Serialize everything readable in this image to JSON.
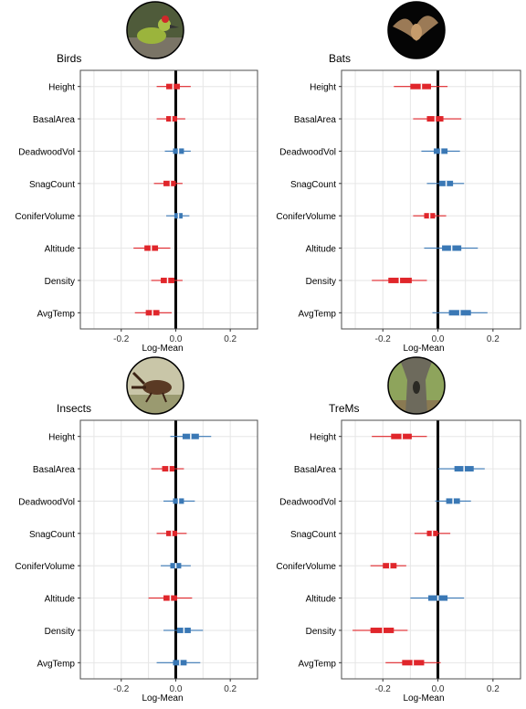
{
  "colors": {
    "negative": "#e0262b",
    "positive": "#3a78b5",
    "zero_line": "#000000",
    "grid": "#e6e6e6",
    "panel_border": "#4d4d4d"
  },
  "chart_data": [
    {
      "type": "forest",
      "title": "Birds",
      "photo_icon": "green-woodpecker-photo",
      "xlabel": "Log-Mean",
      "xlim": [
        -0.35,
        0.3
      ],
      "xticks": [
        -0.2,
        0.0,
        0.2
      ],
      "xtick_labels": [
        "-0.2",
        "0.0",
        "0.2"
      ],
      "grid": true,
      "categories": [
        "Height",
        "BasalArea",
        "DeadwoodVol",
        "SnagCount",
        "ConiferVolume",
        "Altitude",
        "Density",
        "AvgTemp"
      ],
      "mean": [
        -0.01,
        -0.015,
        0.01,
        -0.02,
        0.01,
        -0.09,
        -0.03,
        -0.085
      ],
      "inner_lo": [
        -0.035,
        -0.035,
        -0.01,
        -0.045,
        -0.005,
        -0.115,
        -0.055,
        -0.11
      ],
      "inner_hi": [
        0.015,
        0.005,
        0.03,
        0.0,
        0.025,
        -0.065,
        -0.005,
        -0.06
      ],
      "outer_lo": [
        -0.07,
        -0.07,
        -0.04,
        -0.08,
        -0.035,
        -0.155,
        -0.09,
        -0.15
      ],
      "outer_hi": [
        0.055,
        0.035,
        0.055,
        0.025,
        0.05,
        -0.02,
        0.025,
        -0.015
      ]
    },
    {
      "type": "forest",
      "title": "Bats",
      "photo_icon": "bat-photo",
      "xlabel": "Log-Mean",
      "xlim": [
        -0.35,
        0.3
      ],
      "xticks": [
        -0.2,
        0.0,
        0.2
      ],
      "xtick_labels": [
        "-0.2",
        "0.0",
        "0.2"
      ],
      "grid": true,
      "categories": [
        "Height",
        "BasalArea",
        "DeadwoodVol",
        "SnagCount",
        "ConiferVolume",
        "Altitude",
        "Density",
        "AvgTemp"
      ],
      "mean": [
        -0.06,
        -0.01,
        0.01,
        0.03,
        -0.03,
        0.05,
        -0.14,
        0.08
      ],
      "inner_lo": [
        -0.1,
        -0.04,
        -0.015,
        0.005,
        -0.05,
        0.015,
        -0.18,
        0.04
      ],
      "inner_hi": [
        -0.025,
        0.02,
        0.035,
        0.055,
        -0.01,
        0.085,
        -0.095,
        0.12
      ],
      "outer_lo": [
        -0.16,
        -0.09,
        -0.06,
        -0.04,
        -0.09,
        -0.05,
        -0.24,
        -0.02
      ],
      "outer_hi": [
        0.035,
        0.085,
        0.08,
        0.095,
        0.03,
        0.145,
        -0.04,
        0.18
      ]
    },
    {
      "type": "forest",
      "title": "Insects",
      "photo_icon": "stag-beetle-photo",
      "xlabel": "Log-Mean",
      "xlim": [
        -0.35,
        0.3
      ],
      "xticks": [
        -0.2,
        0.0,
        0.2
      ],
      "xtick_labels": [
        "-0.2",
        "0.0",
        "0.2"
      ],
      "grid": true,
      "categories": [
        "Height",
        "BasalArea",
        "DeadwoodVol",
        "SnagCount",
        "ConiferVolume",
        "Altitude",
        "Density",
        "AvgTemp"
      ],
      "mean": [
        0.055,
        -0.025,
        0.01,
        -0.015,
        0.0,
        -0.02,
        0.03,
        0.015
      ],
      "inner_lo": [
        0.025,
        -0.05,
        -0.01,
        -0.035,
        -0.02,
        -0.045,
        0.005,
        -0.01
      ],
      "inner_hi": [
        0.085,
        -0.005,
        0.03,
        0.005,
        0.02,
        0.005,
        0.055,
        0.04
      ],
      "outer_lo": [
        -0.02,
        -0.09,
        -0.045,
        -0.07,
        -0.055,
        -0.1,
        -0.045,
        -0.07
      ],
      "outer_hi": [
        0.13,
        0.03,
        0.07,
        0.04,
        0.055,
        0.06,
        0.1,
        0.09
      ]
    },
    {
      "type": "forest",
      "title": "TreMs",
      "photo_icon": "tree-microhabitat-photo",
      "xlabel": "Log-Mean",
      "xlim": [
        -0.35,
        0.3
      ],
      "xticks": [
        -0.2,
        0.0,
        0.2
      ],
      "xtick_labels": [
        "-0.2",
        "0.0",
        "0.2"
      ],
      "grid": true,
      "categories": [
        "Height",
        "BasalArea",
        "DeadwoodVol",
        "SnagCount",
        "ConiferVolume",
        "Altitude",
        "Density",
        "AvgTemp"
      ],
      "mean": [
        -0.13,
        0.095,
        0.055,
        -0.02,
        -0.175,
        0.0,
        -0.2,
        -0.09
      ],
      "inner_lo": [
        -0.17,
        0.06,
        0.03,
        -0.04,
        -0.2,
        -0.035,
        -0.245,
        -0.13
      ],
      "inner_hi": [
        -0.095,
        0.13,
        0.08,
        0.0,
        -0.15,
        0.035,
        -0.16,
        -0.05
      ],
      "outer_lo": [
        -0.24,
        0.0,
        -0.01,
        -0.085,
        -0.245,
        -0.1,
        -0.31,
        -0.19
      ],
      "outer_hi": [
        -0.04,
        0.17,
        0.12,
        0.045,
        -0.115,
        0.095,
        -0.11,
        0.01
      ]
    }
  ]
}
